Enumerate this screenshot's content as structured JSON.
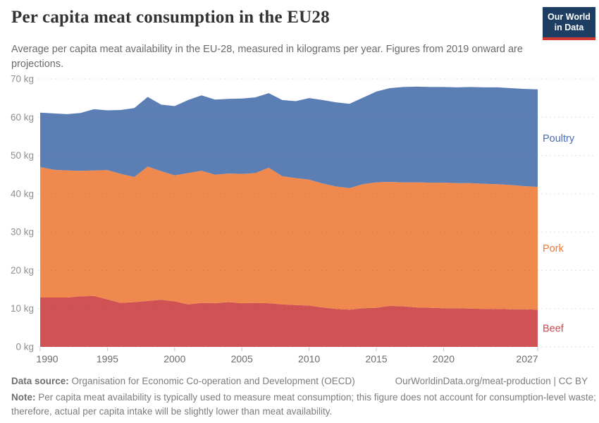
{
  "header": {
    "title": "Per capita meat consumption in the EU28",
    "subtitle": "Average per capita meat availability in the EU-28, measured in kilograms per year. Figures from 2019 onward are projections.",
    "logo": {
      "line1": "Our World",
      "line2": "in Data",
      "bg_color": "#1d3d63",
      "bar_color": "#cf3a33"
    }
  },
  "chart_data": {
    "type": "area",
    "stacked": true,
    "title": "Per capita meat consumption in the EU28",
    "unit": "kilograms per year",
    "x": [
      1990,
      1991,
      1992,
      1993,
      1994,
      1995,
      1996,
      1997,
      1998,
      1999,
      2000,
      2001,
      2002,
      2003,
      2004,
      2005,
      2006,
      2007,
      2008,
      2009,
      2010,
      2011,
      2012,
      2013,
      2014,
      2015,
      2016,
      2017,
      2018,
      2019,
      2020,
      2021,
      2022,
      2023,
      2024,
      2025,
      2026,
      2027
    ],
    "series": [
      {
        "name": "Beef",
        "color": "#d05254",
        "label_color": "#c94a4c",
        "values": [
          12.9,
          12.9,
          12.9,
          13.2,
          13.3,
          12.4,
          11.5,
          11.7,
          12.0,
          12.3,
          11.9,
          11.1,
          11.5,
          11.4,
          11.7,
          11.4,
          11.5,
          11.4,
          11.1,
          10.9,
          10.8,
          10.3,
          9.9,
          9.7,
          10.1,
          10.2,
          10.7,
          10.6,
          10.3,
          10.2,
          10.1,
          10.1,
          10.0,
          9.9,
          9.9,
          9.8,
          9.8,
          9.7
        ]
      },
      {
        "name": "Pork",
        "color": "#f0894e",
        "label_color": "#ee7a38",
        "values": [
          34.1,
          33.4,
          33.2,
          32.8,
          32.8,
          33.8,
          33.7,
          32.7,
          35.1,
          33.6,
          32.9,
          34.3,
          34.5,
          33.6,
          33.6,
          33.8,
          33.9,
          35.4,
          33.5,
          33.2,
          32.9,
          32.4,
          32.0,
          31.8,
          32.4,
          32.8,
          32.4,
          32.4,
          32.7,
          32.7,
          32.8,
          32.7,
          32.8,
          32.7,
          32.6,
          32.5,
          32.2,
          32.1
        ]
      },
      {
        "name": "Poultry",
        "color": "#5b7eb4",
        "label_color": "#4a6cb5",
        "values": [
          14.2,
          14.7,
          14.7,
          15.1,
          16.0,
          15.6,
          16.7,
          18.0,
          18.2,
          17.4,
          18.1,
          19.1,
          19.7,
          19.6,
          19.5,
          19.7,
          19.8,
          19.5,
          19.9,
          20.1,
          21.3,
          21.8,
          22.0,
          22.0,
          22.6,
          23.7,
          24.5,
          24.9,
          25.0,
          25.0,
          25.0,
          25.0,
          25.1,
          25.2,
          25.3,
          25.3,
          25.4,
          25.5
        ]
      }
    ],
    "ylim": [
      0,
      70
    ],
    "y_ticks": [
      0,
      10,
      20,
      30,
      40,
      50,
      60,
      70
    ],
    "y_tick_suffix": " kg",
    "x_ticks": [
      1990,
      1995,
      2000,
      2005,
      2010,
      2015,
      2020,
      2027
    ],
    "grid": "dashed-horizontal",
    "legend_position": "right-inline"
  },
  "footer": {
    "datasource_label": "Data source:",
    "datasource_text": " Organisation for Economic Co-operation and Development (OECD)",
    "link_text": "OurWorldinData.org/meat-production | CC BY",
    "note_label": "Note:",
    "note_text": " Per capita meat availability is typically used to measure meat consumption; this figure does not account for consumption-level waste; therefore, actual per capita intake will be slightly lower than meat availability."
  }
}
